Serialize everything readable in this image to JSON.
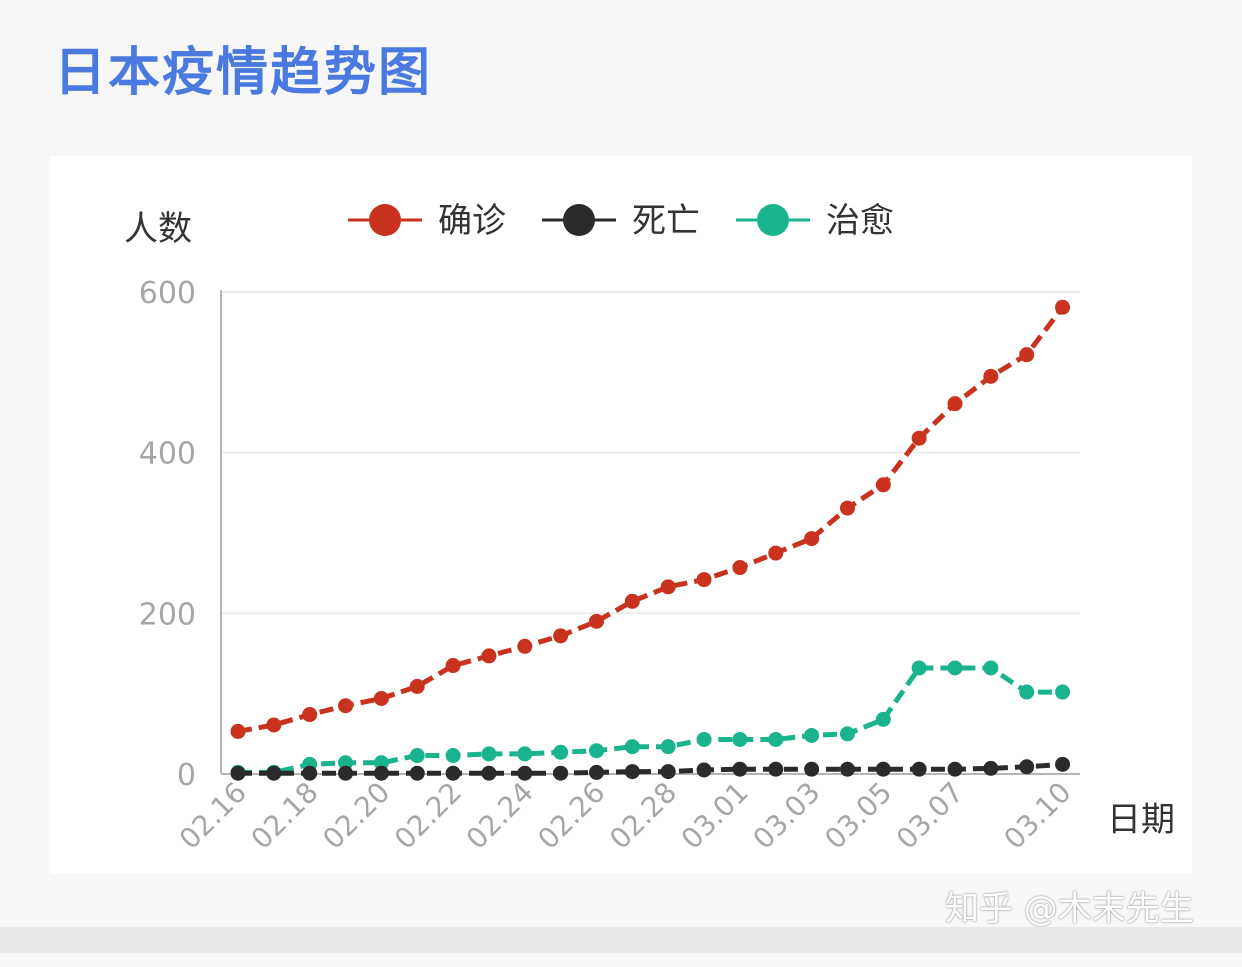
{
  "title": "日本疫情趋势图",
  "watermark": "知乎 @木末先生",
  "chart_data": {
    "type": "line",
    "ylabel": "人数",
    "xlabel": "日期",
    "ylim": [
      0,
      600
    ],
    "yticks": [
      0,
      200,
      400,
      600
    ],
    "grid": true,
    "legend_position": "top",
    "categories": [
      "02.16",
      "02.17",
      "02.18",
      "02.19",
      "02.20",
      "02.21",
      "02.22",
      "02.23",
      "02.24",
      "02.25",
      "02.26",
      "02.27",
      "02.28",
      "02.29",
      "03.01",
      "03.02",
      "03.03",
      "03.04",
      "03.05",
      "03.06",
      "03.07",
      "03.08",
      "03.09",
      "03.10"
    ],
    "xtick_labels": [
      "02.16",
      "02.18",
      "02.20",
      "02.22",
      "02.24",
      "02.26",
      "02.28",
      "03.01",
      "03.03",
      "03.05",
      "03.07",
      "03.10"
    ],
    "series": [
      {
        "name": "确诊",
        "color": "#c8321e",
        "values": [
          53,
          61,
          74,
          85,
          94,
          109,
          135,
          147,
          159,
          172,
          190,
          215,
          233,
          242,
          257,
          275,
          293,
          331,
          360,
          418,
          461,
          495,
          522,
          581
        ]
      },
      {
        "name": "死亡",
        "color": "#2b2b2b",
        "values": [
          1,
          1,
          1,
          1,
          1,
          1,
          1,
          1,
          1,
          1,
          2,
          3,
          3,
          5,
          6,
          6,
          6,
          6,
          6,
          6,
          6,
          7,
          9,
          12
        ]
      },
      {
        "name": "治愈",
        "color": "#19b38e",
        "values": [
          2,
          2,
          12,
          14,
          14,
          23,
          23,
          25,
          25,
          27,
          29,
          34,
          34,
          43,
          43,
          43,
          48,
          50,
          68,
          132,
          132,
          132,
          102,
          102
        ]
      }
    ]
  }
}
